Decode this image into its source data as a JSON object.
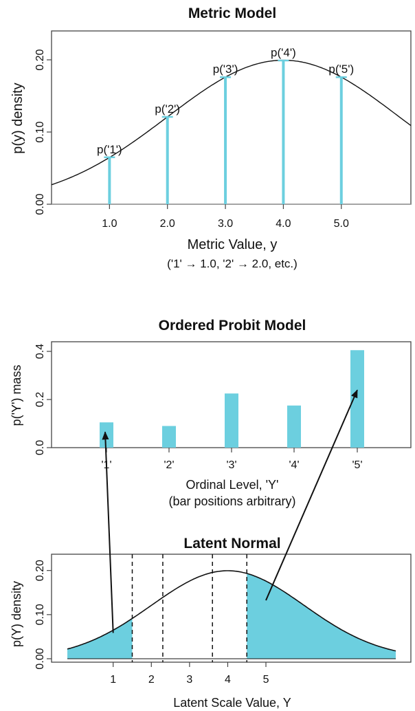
{
  "colors": {
    "bar": "#6ccfdf",
    "curve": "#111111",
    "frame": "#444444",
    "zero_line": "#999999",
    "arrow": "#111111"
  },
  "chart_data": [
    {
      "id": "metric",
      "type": "line",
      "title": "Metric Model",
      "ylabel": "p(y)   density",
      "xlabel": "Metric Value, y",
      "note": "('1' → 1.0, '2' → 2.0, etc.)",
      "xlim": [
        0,
        6.2
      ],
      "ylim": [
        0,
        0.24
      ],
      "xticks": [
        "1.0",
        "2.0",
        "3.0",
        "4.0",
        "5.0"
      ],
      "xtick_values": [
        1,
        2,
        3,
        4,
        5
      ],
      "yticks": [
        "0.00",
        "0.10",
        "0.20"
      ],
      "ytick_values": [
        0.0,
        0.1,
        0.2
      ],
      "curve": {
        "mean": 4,
        "sd": 2
      },
      "spikes": [
        {
          "x": 1,
          "y": 0.065,
          "label": "p('1')"
        },
        {
          "x": 2,
          "y": 0.121,
          "label": "p('2')"
        },
        {
          "x": 3,
          "y": 0.176,
          "label": "p('3')"
        },
        {
          "x": 4,
          "y": 0.199,
          "label": "p('4')"
        },
        {
          "x": 5,
          "y": 0.176,
          "label": "p('5')"
        }
      ]
    },
    {
      "id": "probit",
      "type": "bar",
      "title": "Ordered Probit Model",
      "ylabel": "p('Y')   mass",
      "xlabel": "Ordinal Level, 'Y'",
      "note": "(bar positions arbitrary)",
      "ylim": [
        0,
        0.44
      ],
      "yticks": [
        "0.0",
        "0.2",
        "0.4"
      ],
      "ytick_values": [
        0.0,
        0.2,
        0.4
      ],
      "categories": [
        "'1'",
        "'2'",
        "'3'",
        "'4'",
        "'5'"
      ],
      "values": [
        0.105,
        0.09,
        0.225,
        0.175,
        0.405
      ]
    },
    {
      "id": "latent",
      "type": "area",
      "title": "Latent Normal",
      "ylabel": "p(Y)  density",
      "xlabel": "Latent Scale Value, Y",
      "xlim": [
        -0.2,
        8.4
      ],
      "ylim": [
        0,
        0.24
      ],
      "xticks": [
        "1",
        "2",
        "3",
        "4",
        "5"
      ],
      "xtick_values": [
        1,
        2,
        3,
        4,
        5
      ],
      "yticks": [
        "0.00",
        "0.10",
        "0.20"
      ],
      "ytick_values": [
        0.0,
        0.1,
        0.2
      ],
      "curve": {
        "mean": 4,
        "sd": 2,
        "from": -0.2,
        "to": 8.4
      },
      "thresholds": [
        1.5,
        2.3,
        3.6,
        4.5
      ],
      "shaded_regions": [
        [
          -0.2,
          1.5
        ],
        [
          4.5,
          8.4
        ]
      ],
      "arrows": [
        {
          "from_latent_x": 1.0,
          "to_category": "'1'"
        },
        {
          "from_latent_x": 5.0,
          "to_category": "'5'"
        }
      ]
    }
  ]
}
